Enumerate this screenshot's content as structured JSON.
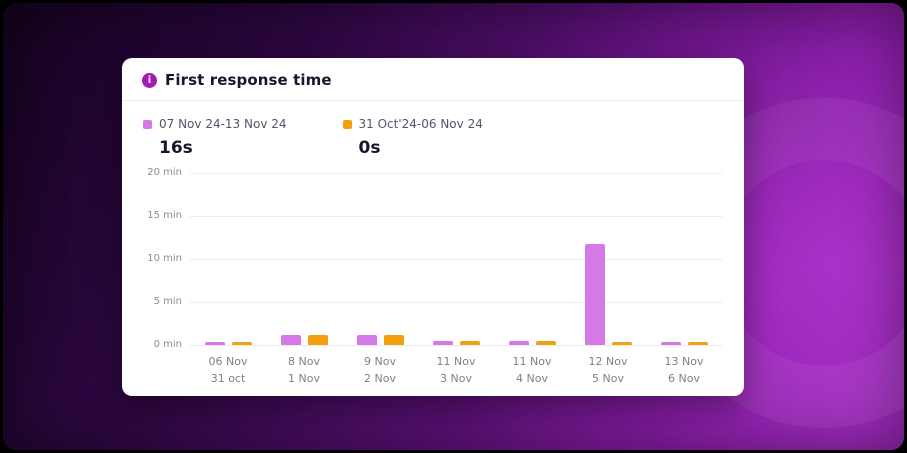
{
  "card": {
    "title": "First response time"
  },
  "legend": {
    "items": [
      {
        "label": "07 Nov 24-13 Nov 24",
        "value": "16s",
        "color": "#d679e8"
      },
      {
        "label": "31 Oct'24-06 Nov 24",
        "value": "0s",
        "color": "#f0a10d"
      }
    ]
  },
  "chart_data": {
    "type": "bar",
    "title": "First response time",
    "categories": [
      {
        "line1": "06 Nov",
        "line2": "31 oct"
      },
      {
        "line1": "8 Nov",
        "line2": "1 Nov"
      },
      {
        "line1": "9 Nov",
        "line2": "2 Nov"
      },
      {
        "line1": "11 Nov",
        "line2": "3 Nov"
      },
      {
        "line1": "11 Nov",
        "line2": "4 Nov"
      },
      {
        "line1": "12 Nov",
        "line2": "5 Nov"
      },
      {
        "line1": "13 Nov",
        "line2": "6 Nov"
      }
    ],
    "series": [
      {
        "name": "07 Nov 24-13 Nov 24",
        "color": "#d679e8",
        "values": [
          0.4,
          1.2,
          1.2,
          0.5,
          0.5,
          11.7,
          0.3
        ]
      },
      {
        "name": "31 Oct'24-06 Nov 24",
        "color": "#f0a10d",
        "values": [
          0.4,
          1.2,
          1.2,
          0.5,
          0.5,
          0.4,
          0.3
        ]
      }
    ],
    "y_ticks": [
      "20 min",
      "15 min",
      "10 min",
      "5 min",
      "0 min"
    ],
    "ylim": [
      0,
      20
    ],
    "ylabel": "minutes",
    "grid": true,
    "legend_position": "top"
  },
  "colors": {
    "accent_purple": "#a21bb2",
    "bar_purple": "#d679e8",
    "bar_orange": "#f0a10d",
    "card_bg": "#ffffff",
    "bg_dark": "#160320",
    "bg_bright": "#a32cc2"
  },
  "icons": {
    "info_icon_glyph": "i"
  }
}
